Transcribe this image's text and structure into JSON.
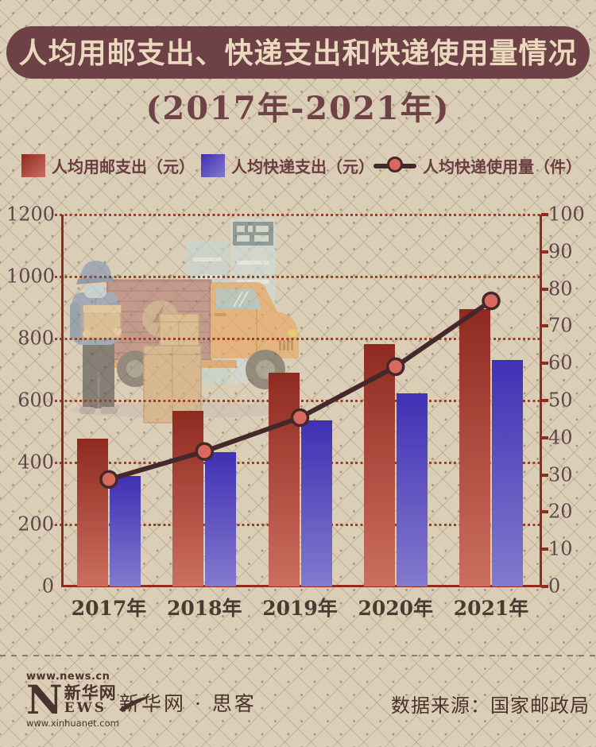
{
  "header": {
    "title": "人均用邮支出、快递支出和快递使用量情况",
    "subtitle": "(2017年-2021年)"
  },
  "legend": {
    "items": [
      {
        "label": "人均用邮支出（元）",
        "type": "bar"
      },
      {
        "label": "人均快递支出（元）",
        "type": "bar"
      },
      {
        "label": "人均快递使用量（件）",
        "type": "line"
      }
    ]
  },
  "colors": {
    "background": "#dbceb6",
    "title_bar": "#6e4147",
    "title_text": "#ead9bc",
    "text_maroon": "#6b3c40",
    "bar_post_top": "#8f2a20",
    "bar_post_bottom": "#cb6e5f",
    "bar_express_top": "#4030b4",
    "bar_express_bottom": "#8379cd",
    "line": "#44282b",
    "marker_fill": "#d7695e",
    "axis": "#8e2d1d",
    "grid": "#a23b2a",
    "footer_text": "#4a332c"
  },
  "chart_data": {
    "type": "bar",
    "subtype": "grouped bars with overlay line (dual axis)",
    "categories": [
      "2017年",
      "2018年",
      "2019年",
      "2020年",
      "2021年"
    ],
    "series": [
      {
        "name": "人均用邮支出（元）",
        "type": "bar",
        "axis": "left",
        "values": [
          476,
          567,
          689,
          782,
          895
        ]
      },
      {
        "name": "人均快递支出（元）",
        "type": "bar",
        "axis": "left",
        "values": [
          357,
          433,
          536,
          623,
          731
        ]
      },
      {
        "name": "人均快递使用量（件）",
        "type": "line",
        "axis": "right",
        "values": [
          28.8,
          36.3,
          45.4,
          59.1,
          76.8
        ]
      }
    ],
    "left_axis": {
      "min": 0,
      "max": 1200,
      "step": 200,
      "tick_labels": [
        "0",
        "200",
        "400",
        "600",
        "800",
        "1000",
        "1200"
      ]
    },
    "right_axis": {
      "min": 0,
      "max": 100,
      "step": 10,
      "tick_labels": [
        "0",
        "10",
        "20",
        "30",
        "40",
        "50",
        "60",
        "70",
        "80",
        "90",
        "100"
      ]
    },
    "grid": "horizontal dotted lines at left-axis steps",
    "legend_position": "top"
  },
  "footer": {
    "logo_top": "www.news.cn",
    "logo_n": "N",
    "logo_cn": "新华网",
    "logo_ews": "EWS",
    "logo_bottom": "www.xinhuanet.com",
    "brand": "新华网 · 思客",
    "source": "数据来源：国家邮政局"
  }
}
